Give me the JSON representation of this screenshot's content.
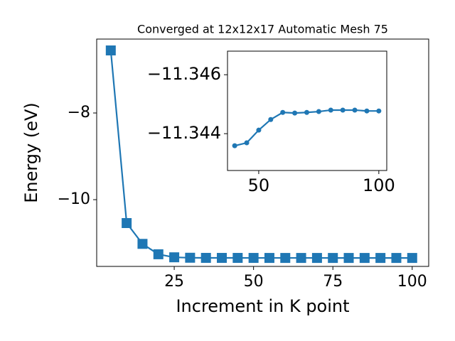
{
  "chart_data": [
    {
      "type": "line",
      "title": "Converged at 12x12x17 Automatic Mesh 75",
      "xlabel": "Increment in K point",
      "ylabel": "Energy (eV)",
      "x": [
        5,
        10,
        15,
        20,
        25,
        30,
        35,
        40,
        45,
        50,
        55,
        60,
        65,
        70,
        75,
        80,
        85,
        90,
        95,
        100
      ],
      "series": [
        {
          "color": "#1f77b4",
          "marker": "square",
          "values": [
            -6.557,
            -10.54,
            -11.02,
            -11.26,
            -11.33,
            -11.34,
            -11.343,
            -11.3436,
            -11.3437,
            -11.3441,
            -11.3445,
            -11.3447,
            -11.3447,
            -11.3447,
            -11.3448,
            -11.3448,
            -11.3448,
            -11.3448,
            -11.3448,
            -11.3448
          ]
        }
      ],
      "xlim": [
        0.56,
        105.2
      ],
      "ylim": [
        -11.54,
        -6.295
      ],
      "xticks": [
        25,
        50,
        75,
        100
      ],
      "yticks": [
        {
          "value": -8,
          "label": "−8"
        },
        {
          "value": -10,
          "label": "−10"
        }
      ]
    },
    {
      "type": "line",
      "x": [
        40,
        45,
        50,
        55,
        60,
        65,
        70,
        75,
        80,
        85,
        90,
        95,
        100
      ],
      "series": [
        {
          "color": "#1f77b4",
          "marker": "circle",
          "values": [
            -11.34359,
            -11.34369,
            -11.34412,
            -11.34448,
            -11.34472,
            -11.3447,
            -11.34472,
            -11.34475,
            -11.3448,
            -11.3448,
            -11.3448,
            -11.34477,
            -11.34477
          ]
        }
      ],
      "xlim": [
        37,
        103.3
      ],
      "ylim": [
        -11.34275,
        -11.3468
      ],
      "xticks": [
        50,
        100
      ],
      "yticks": [
        {
          "value": -11.346,
          "label": "−11.346"
        },
        {
          "value": -11.344,
          "label": "−11.344"
        }
      ]
    }
  ]
}
